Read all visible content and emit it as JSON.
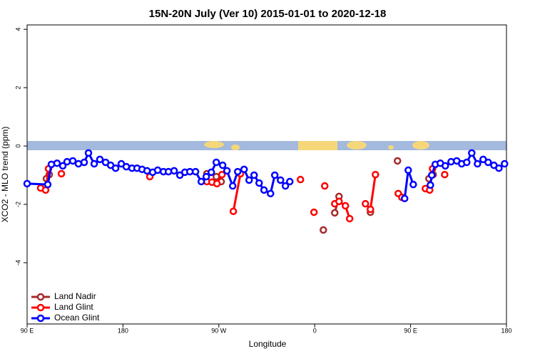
{
  "chart_data": {
    "type": "line",
    "title": "15N-20N July (Ver 10)   2015-01-01 to 2020-12-18",
    "x_label": "Longitude",
    "y_label": "XCO2 - MLO trend (ppm)",
    "xlim": [
      90,
      540
    ],
    "xticks": [
      {
        "value": 90,
        "label": "90 E"
      },
      180,
      {
        "value": 270,
        "label": "90 W"
      },
      {
        "value": 360,
        "label": "0"
      },
      {
        "value": 450,
        "label": "90 E"
      },
      {
        "value": 540,
        "label": "180"
      }
    ],
    "ylim": [
      -6.1,
      4.15
    ],
    "yticks": [
      4,
      2,
      0,
      -2,
      -4
    ],
    "legend": "bottom-left",
    "series": [
      {
        "name": "Land Nadir",
        "color": "#a52a2a",
        "x": [
          108.1,
          110.8,
          null,
          258.8,
          null,
          267.6,
          272.2,
          null,
          368.1,
          null,
          378.8,
          382.8,
          null,
          412.3,
          null,
          437.7,
          null,
          467.2,
          471.2
        ],
        "values": [
          -1.12,
          -0.98,
          null,
          -0.95,
          null,
          -1.05,
          -1.22,
          null,
          -2.88,
          null,
          -2.29,
          -1.73,
          null,
          -2.27,
          null,
          -0.51,
          null,
          -1.12,
          -0.98
        ]
      },
      {
        "name": "Land Glint",
        "color": "#ff0000",
        "x": [
          102.7,
          107.4,
          110.1,
          null,
          122.2,
          null,
          205.2,
          null,
          258.8,
          263.5,
          268.2,
          272.9,
          null,
          283.6,
          290.3,
          null,
          346.6,
          null,
          359.3,
          null,
          369.4,
          null,
          378.8,
          382.8,
          388.8,
          392.8,
          null,
          407.6,
          412.3,
          417.0,
          null,
          438.4,
          441.8,
          null,
          463.9,
          467.9,
          470.6,
          null,
          482.0
        ],
        "values": [
          -1.44,
          -1.51,
          -0.78,
          null,
          -0.95,
          null,
          -1.05,
          null,
          -1.22,
          -1.24,
          -1.29,
          -0.98,
          null,
          -2.24,
          -0.95,
          null,
          -1.15,
          null,
          -2.27,
          null,
          -1.37,
          null,
          -1.98,
          -1.9,
          -2.05,
          -2.49,
          null,
          -1.98,
          -2.17,
          -0.98,
          null,
          -1.63,
          -1.76,
          null,
          -1.46,
          -1.51,
          -0.78,
          null,
          -0.98
        ]
      },
      {
        "name": "Ocean Glint",
        "color": "#0000ff",
        "x": [
          90,
          109.4,
          112.8,
          118.1,
          123.5,
          127.5,
          132.9,
          138.2,
          143.6,
          147.6,
          153.0,
          158.3,
          163.7,
          168.4,
          173.1,
          178.4,
          183.1,
          188.5,
          193.2,
          197.9,
          202.6,
          207.9,
          212.6,
          218.0,
          222.7,
          228.0,
          233.4,
          238.1,
          242.8,
          248.1,
          253.5,
          258.2,
          262.9,
          267.6,
          273.6,
          277.6,
          283.0,
          287.7,
          293.7,
          298.4,
          303.1,
          307.8,
          312.4,
          318.5,
          322.5,
          327.9,
          332.5,
          336.6,
          null,
          444.4,
          447.8,
          452.5,
          null,
          468.6,
          469.9,
          473.2,
          477.9,
          482.6,
          488.0,
          493.3,
          498.0,
          502.7,
          507.4,
          512.8,
          518.1,
          522.8,
          528.2,
          532.9,
          538.2
        ],
        "values": [
          -1.29,
          -1.32,
          -0.63,
          -0.59,
          -0.68,
          -0.54,
          -0.51,
          -0.61,
          -0.56,
          -0.24,
          -0.61,
          -0.46,
          -0.56,
          -0.66,
          -0.76,
          -0.61,
          -0.71,
          -0.76,
          -0.76,
          -0.8,
          -0.85,
          -0.9,
          -0.83,
          -0.88,
          -0.88,
          -0.85,
          -1.0,
          -0.9,
          -0.88,
          -0.88,
          -1.22,
          -1.05,
          -0.9,
          -0.56,
          -0.66,
          -0.85,
          -1.37,
          -0.88,
          -0.8,
          -1.17,
          -1.0,
          -1.27,
          -1.51,
          -1.63,
          -1.0,
          -1.17,
          -1.37,
          -1.22,
          null,
          -1.8,
          -0.83,
          -1.32,
          null,
          -1.34,
          -1.0,
          -0.63,
          -0.59,
          -0.68,
          -0.54,
          -0.51,
          -0.61,
          -0.56,
          -0.24,
          -0.61,
          -0.46,
          -0.56,
          -0.66,
          -0.76,
          -0.61
        ]
      }
    ]
  }
}
